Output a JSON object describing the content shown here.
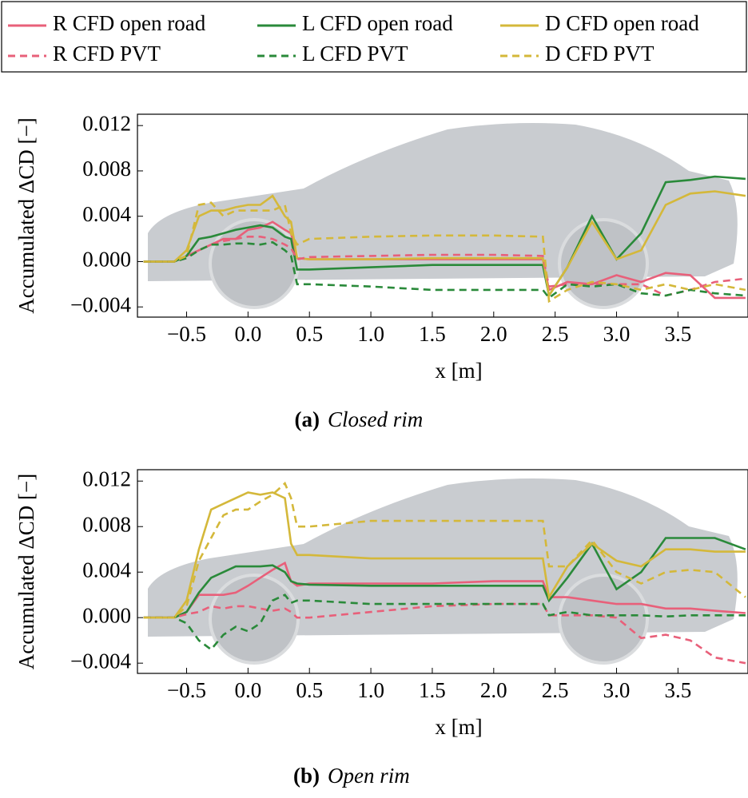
{
  "chart_data": [
    {
      "type": "line",
      "caption_label": "(a)",
      "caption": "Closed rim",
      "x_label": "x [m]",
      "y_label": "Accumulated ΔCD [−]",
      "x": [
        -0.85,
        -0.6,
        -0.5,
        -0.4,
        -0.3,
        -0.2,
        -0.1,
        0.0,
        0.1,
        0.2,
        0.3,
        0.35,
        0.4,
        0.5,
        1.0,
        1.5,
        2.0,
        2.4,
        2.45,
        2.6,
        2.8,
        3.0,
        3.2,
        3.4,
        3.6,
        3.8,
        4.05
      ],
      "xlim": [
        -0.9,
        4.07
      ],
      "ylim": [
        -0.0049,
        0.013
      ],
      "xticks": [
        {
          "value": -0.5,
          "label": "−0.5"
        },
        {
          "value": 0,
          "label": "0.0"
        },
        0.5,
        {
          "value": 1,
          "label": "1.0"
        },
        1.5,
        {
          "value": 2,
          "label": "2.0"
        },
        2.5,
        {
          "value": 3,
          "label": "3.0"
        },
        3.5
      ],
      "yticks": [
        {
          "value": -0.004,
          "label": "−0.004"
        },
        {
          "value": 0,
          "label": "0.000"
        },
        0.004,
        0.008,
        0.012
      ],
      "series": [
        {
          "name": "R CFD open road",
          "color": "#e8607a",
          "dashed": false,
          "values": [
            0,
            0,
            0.0005,
            0.001,
            0.0015,
            0.002,
            0.002,
            0.0028,
            0.003,
            0.0035,
            0.0028,
            0.0025,
            0.0003,
            0.0002,
            0.0002,
            0.0002,
            0.0002,
            0.0002,
            -0.0025,
            -0.0018,
            -0.002,
            -0.0012,
            -0.0018,
            -0.001,
            -0.0012,
            -0.0032,
            -0.0032
          ]
        },
        {
          "name": "L CFD open road",
          "color": "#2a8a3a",
          "dashed": false,
          "values": [
            0,
            0,
            0.0005,
            0.002,
            0.0022,
            0.0025,
            0.0028,
            0.003,
            0.0032,
            0.003,
            0.0022,
            0.002,
            -0.0007,
            -0.0007,
            -0.0005,
            -0.0003,
            -0.0003,
            -0.0003,
            -0.003,
            -0.0005,
            0.004,
            0.0002,
            0.0025,
            0.007,
            0.0072,
            0.0075,
            0.0073
          ]
        },
        {
          "name": "D CFD open road",
          "color": "#d4b83a",
          "dashed": false,
          "values": [
            0,
            0,
            0.001,
            0.004,
            0.0045,
            0.0045,
            0.0048,
            0.005,
            0.005,
            0.0058,
            0.004,
            0.0035,
            0.0003,
            0.0002,
            0.0002,
            0.0003,
            0.0003,
            0.0003,
            -0.003,
            -0.0005,
            0.0035,
            0.0002,
            0.001,
            0.005,
            0.006,
            0.0062,
            0.0058
          ]
        },
        {
          "name": "R CFD PVT",
          "color": "#e8607a",
          "dashed": true,
          "values": [
            0,
            0,
            0.0003,
            0.001,
            0.0015,
            0.0018,
            0.002,
            0.0022,
            0.0022,
            0.002,
            0.0015,
            0.0012,
            0.0002,
            0.0004,
            0.0005,
            0.0006,
            0.0006,
            0.0005,
            -0.0022,
            -0.002,
            -0.002,
            -0.002,
            -0.002,
            -0.003,
            -0.0025,
            -0.0018,
            -0.0015
          ]
        },
        {
          "name": "L CFD PVT",
          "color": "#2a8a3a",
          "dashed": true,
          "values": [
            0,
            0,
            0.0003,
            0.001,
            0.0015,
            0.0015,
            0.0016,
            0.0016,
            0.0015,
            0.0017,
            0.001,
            0.0005,
            -0.002,
            -0.002,
            -0.0022,
            -0.0025,
            -0.0025,
            -0.0025,
            -0.0032,
            -0.002,
            -0.0022,
            -0.002,
            -0.0028,
            -0.003,
            -0.0025,
            -0.0028,
            -0.003
          ]
        },
        {
          "name": "D CFD PVT",
          "color": "#d4b83a",
          "dashed": true,
          "values": [
            0,
            0,
            0.0005,
            0.005,
            0.0052,
            0.004,
            0.0045,
            0.0045,
            0.0045,
            0.0045,
            0.005,
            0.0025,
            0.0015,
            0.002,
            0.0022,
            0.0023,
            0.0023,
            0.0022,
            -0.0035,
            -0.0025,
            -0.0018,
            -0.002,
            -0.0025,
            -0.002,
            -0.0025,
            -0.002,
            -0.0025
          ]
        }
      ]
    },
    {
      "type": "line",
      "caption_label": "(b)",
      "caption": "Open rim",
      "x_label": "x [m]",
      "y_label": "Accumulated ΔCD [−]",
      "x": [
        -0.85,
        -0.6,
        -0.5,
        -0.4,
        -0.3,
        -0.2,
        -0.1,
        0.0,
        0.1,
        0.2,
        0.3,
        0.35,
        0.4,
        0.5,
        1.0,
        1.5,
        2.0,
        2.4,
        2.45,
        2.6,
        2.8,
        3.0,
        3.2,
        3.4,
        3.6,
        3.8,
        4.05
      ],
      "xlim": [
        -0.9,
        4.07
      ],
      "ylim": [
        -0.0049,
        0.013
      ],
      "xticks": [
        {
          "value": -0.5,
          "label": "−0.5"
        },
        {
          "value": 0,
          "label": "0.0"
        },
        0.5,
        {
          "value": 1,
          "label": "1.0"
        },
        1.5,
        {
          "value": 2,
          "label": "2.0"
        },
        2.5,
        {
          "value": 3,
          "label": "3.0"
        },
        3.5
      ],
      "yticks": [
        {
          "value": -0.004,
          "label": "−0.004"
        },
        {
          "value": 0,
          "label": "0.000"
        },
        0.004,
        0.008,
        0.012
      ],
      "series": [
        {
          "name": "R CFD open road",
          "color": "#e8607a",
          "dashed": false,
          "values": [
            0,
            0,
            0.0005,
            0.002,
            0.002,
            0.002,
            0.0022,
            0.0028,
            0.0035,
            0.0042,
            0.0048,
            0.0032,
            0.0028,
            0.003,
            0.003,
            0.003,
            0.0032,
            0.0032,
            0.0018,
            0.0018,
            0.0015,
            0.0012,
            0.0012,
            0.0008,
            0.0008,
            0.0006,
            0.0004
          ]
        },
        {
          "name": "L CFD open road",
          "color": "#2a8a3a",
          "dashed": false,
          "values": [
            0,
            0,
            0.0005,
            0.0022,
            0.0035,
            0.004,
            0.0045,
            0.0045,
            0.0045,
            0.0046,
            0.004,
            0.0032,
            0.003,
            0.0029,
            0.0028,
            0.0028,
            0.0028,
            0.0028,
            0.0015,
            0.0035,
            0.0065,
            0.0025,
            0.004,
            0.007,
            0.007,
            0.007,
            0.006
          ]
        },
        {
          "name": "D CFD open road",
          "color": "#d4b83a",
          "dashed": false,
          "values": [
            0,
            0,
            0.0015,
            0.006,
            0.0095,
            0.01,
            0.0105,
            0.011,
            0.0108,
            0.011,
            0.0105,
            0.0065,
            0.0055,
            0.0055,
            0.0052,
            0.0052,
            0.0052,
            0.0052,
            0.0018,
            0.0045,
            0.0065,
            0.005,
            0.0045,
            0.006,
            0.006,
            0.0058,
            0.0058
          ]
        },
        {
          "name": "R CFD PVT",
          "color": "#e8607a",
          "dashed": true,
          "values": [
            0,
            0,
            0.0003,
            0.0005,
            0.001,
            0.0008,
            0.001,
            0.001,
            0.0008,
            0.0006,
            0.0008,
            0.0005,
            0,
            0,
            0.0005,
            0.001,
            0.0012,
            0.0012,
            0.0002,
            0.0002,
            0.0002,
            0,
            -0.0018,
            -0.0015,
            -0.002,
            -0.0035,
            -0.004
          ]
        },
        {
          "name": "L CFD PVT",
          "color": "#2a8a3a",
          "dashed": true,
          "values": [
            0,
            0,
            -0.0005,
            -0.002,
            -0.0028,
            -0.0015,
            -0.0008,
            -0.0012,
            -0.0005,
            0.0015,
            0.002,
            0.0013,
            0.0015,
            0.0015,
            0.0012,
            0.0012,
            0.0012,
            0.0012,
            0.0002,
            0.0005,
            0.0002,
            0.0002,
            0.0002,
            0.0001,
            0.0002,
            0.0002,
            0.0002
          ]
        },
        {
          "name": "D CFD PVT",
          "color": "#d4b83a",
          "dashed": true,
          "values": [
            0,
            0,
            0.001,
            0.005,
            0.007,
            0.009,
            0.0095,
            0.0095,
            0.0102,
            0.0108,
            0.0118,
            0.0105,
            0.008,
            0.008,
            0.0085,
            0.0085,
            0.0085,
            0.0085,
            0.0045,
            0.0045,
            0.0068,
            0.004,
            0.003,
            0.004,
            0.0042,
            0.004,
            0.0018
          ]
        }
      ]
    }
  ]
}
